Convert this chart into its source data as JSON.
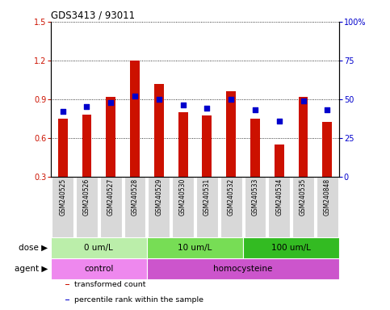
{
  "title": "GDS3413 / 93011",
  "samples": [
    "GSM240525",
    "GSM240526",
    "GSM240527",
    "GSM240528",
    "GSM240529",
    "GSM240530",
    "GSM240531",
    "GSM240532",
    "GSM240533",
    "GSM240534",
    "GSM240535",
    "GSM240848"
  ],
  "transformed_count": [
    0.75,
    0.78,
    0.92,
    1.2,
    1.02,
    0.8,
    0.77,
    0.96,
    0.75,
    0.55,
    0.92,
    0.72
  ],
  "percentile_rank": [
    42,
    45,
    48,
    52,
    50,
    46,
    44,
    50,
    43,
    36,
    49,
    43
  ],
  "ylim_left": [
    0.3,
    1.5
  ],
  "ylim_right": [
    0,
    100
  ],
  "yticks_left": [
    0.3,
    0.6,
    0.9,
    1.2,
    1.5
  ],
  "yticks_right": [
    0,
    25,
    50,
    75,
    100
  ],
  "ytick_labels_right": [
    "0",
    "25",
    "50",
    "75",
    "100%"
  ],
  "bar_color": "#cc1100",
  "dot_color": "#0000cc",
  "grid_color": "#000000",
  "background_color": "#ffffff",
  "sample_bg_color": "#d8d8d8",
  "dose_colors": [
    "#bbeeaa",
    "#77dd55",
    "#33bb22"
  ],
  "dose_labels": [
    "0 um/L",
    "10 um/L",
    "100 um/L"
  ],
  "dose_ranges": [
    [
      0,
      4
    ],
    [
      4,
      8
    ],
    [
      8,
      12
    ]
  ],
  "agent_colors": [
    "#ee88ee",
    "#cc55cc"
  ],
  "agent_labels": [
    "control",
    "homocysteine"
  ],
  "agent_ranges": [
    [
      0,
      4
    ],
    [
      4,
      12
    ]
  ],
  "xlabel_dose": "dose",
  "xlabel_agent": "agent",
  "legend_items": [
    {
      "label": "transformed count",
      "color": "#cc1100"
    },
    {
      "label": "percentile rank within the sample",
      "color": "#0000cc"
    }
  ]
}
